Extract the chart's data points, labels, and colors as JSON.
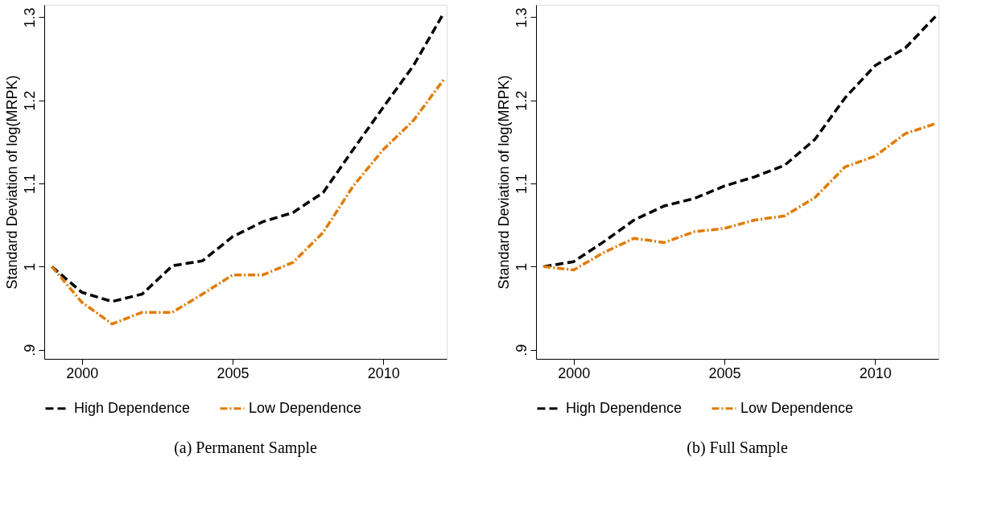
{
  "chart_data": [
    {
      "type": "line",
      "title": "(a) Permanent Sample",
      "ylabel": "Standard Deviation of log(MRPK)",
      "x": [
        1999,
        2000,
        2001,
        2002,
        2003,
        2004,
        2005,
        2006,
        2007,
        2008,
        2009,
        2010,
        2011,
        2012
      ],
      "series": [
        {
          "name": "High Dependence",
          "color": "#000000",
          "line_style": "dashed",
          "values": [
            1.0,
            0.969,
            0.958,
            0.967,
            1.001,
            1.007,
            1.036,
            1.054,
            1.065,
            1.089,
            1.141,
            1.192,
            1.242,
            1.305
          ]
        },
        {
          "name": "Low Dependence",
          "color": "#e07b00",
          "line_style": "dashdot",
          "values": [
            1.0,
            0.957,
            0.931,
            0.945,
            0.945,
            0.967,
            0.99,
            0.99,
            1.005,
            1.041,
            1.097,
            1.141,
            1.176,
            1.225
          ]
        }
      ],
      "xlim": [
        1998.75,
        2012.1
      ],
      "ylim": [
        0.889,
        1.315
      ],
      "xticks": [
        2000,
        2005,
        2010
      ],
      "yticks": [
        {
          "value": 0.9,
          "label": ".9"
        },
        1,
        1.1,
        1.2,
        1.3
      ],
      "legend": "bottom",
      "grid": false
    },
    {
      "type": "line",
      "title": "(b) Full Sample",
      "ylabel": "Standard Deviation of log(MRPK)",
      "x": [
        1999,
        2000,
        2001,
        2002,
        2003,
        2004,
        2005,
        2006,
        2007,
        2008,
        2009,
        2010,
        2011,
        2012
      ],
      "series": [
        {
          "name": "High Dependence",
          "color": "#000000",
          "line_style": "dashed",
          "values": [
            1.0,
            1.006,
            1.03,
            1.056,
            1.073,
            1.082,
            1.097,
            1.108,
            1.122,
            1.153,
            1.203,
            1.242,
            1.263,
            1.301
          ]
        },
        {
          "name": "Low Dependence",
          "color": "#e07b00",
          "line_style": "dashdot",
          "values": [
            1.0,
            0.996,
            1.017,
            1.034,
            1.029,
            1.042,
            1.046,
            1.056,
            1.061,
            1.083,
            1.12,
            1.133,
            1.16,
            1.172
          ]
        }
      ],
      "xlim": [
        1998.75,
        2012.1
      ],
      "ylim": [
        0.889,
        1.315
      ],
      "xticks": [
        2000,
        2005,
        2010
      ],
      "yticks": [
        {
          "value": 0.9,
          "label": ".9"
        },
        1,
        1.1,
        1.2,
        1.3
      ],
      "legend": "bottom",
      "grid": false
    }
  ]
}
